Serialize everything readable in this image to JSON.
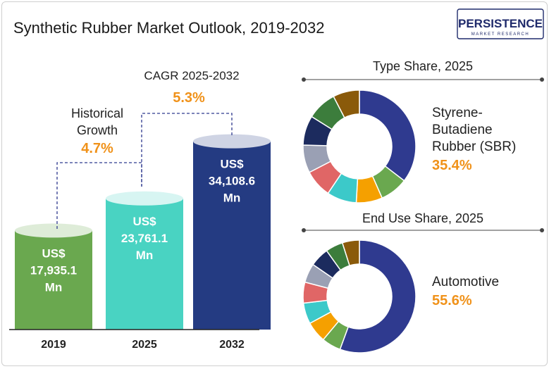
{
  "header": {
    "title": "Synthetic Rubber Market Outlook, 2019-2032",
    "logo_main": "PERSISTENCE",
    "logo_sub": "MARKET RESEARCH"
  },
  "annotations": {
    "historical_label_1": "Historical",
    "historical_label_2": "Growth",
    "historical_value": "4.7%",
    "cagr_label": "CAGR 2025-2032",
    "cagr_value": "5.3%"
  },
  "donuts": {
    "type": {
      "title": "Type Share, 2025",
      "label_lines": [
        "Styrene-",
        "Butadiene",
        "Rubber (SBR)"
      ],
      "value": "35.4%"
    },
    "end_use": {
      "title": "End Use Share, 2025",
      "label_lines": [
        "Automotive"
      ],
      "value": "55.6%"
    }
  },
  "colors": {
    "title": "#1a1a1a",
    "accent_orange": "#f0921a",
    "bar_2019": "#6aa84f",
    "bar_2025": "#49d3c2",
    "bar_2032": "#243b82",
    "navy": "#2f3a8f",
    "green": "#6aa84f",
    "orange": "#f5a000",
    "teal": "#3cc9c9",
    "red": "#e06666",
    "gray": "#9aa0b4",
    "dark_navy": "#1c2b5e",
    "dark_green": "#3c7d3c",
    "brown": "#8a5a0a"
  },
  "chart_data": [
    {
      "type": "bar",
      "categories": [
        "2019",
        "2025",
        "2032"
      ],
      "values": [
        17935.1,
        23761.1,
        34108.6
      ],
      "value_labels": [
        [
          "US$",
          "17,935.1",
          "Mn"
        ],
        [
          "US$",
          "23,761.1",
          "Mn"
        ],
        [
          "US$",
          "34,108.6",
          "Mn"
        ]
      ],
      "ylim": [
        0,
        37000
      ],
      "grid": false,
      "legend": "none"
    },
    {
      "type": "pie",
      "title": "Type Share, 2025",
      "values": [
        35.4,
        8.0,
        7.5,
        8.5,
        8.0,
        8.0,
        8.5,
        8.5,
        7.6
      ],
      "colors": [
        "#2f3a8f",
        "#6aa84f",
        "#f5a000",
        "#3cc9c9",
        "#e06666",
        "#9aa0b4",
        "#1c2b5e",
        "#3c7d3c",
        "#8a5a0a"
      ],
      "labeled_slice": "Styrene-Butadiene Rubber (SBR)",
      "labeled_value": 35.4
    },
    {
      "type": "pie",
      "title": "End Use Share, 2025",
      "values": [
        55.6,
        5.5,
        6.0,
        6.0,
        6.0,
        5.5,
        5.5,
        5.0,
        4.9
      ],
      "colors": [
        "#2f3a8f",
        "#6aa84f",
        "#f5a000",
        "#3cc9c9",
        "#e06666",
        "#9aa0b4",
        "#1c2b5e",
        "#3c7d3c",
        "#8a5a0a"
      ],
      "labeled_slice": "Automotive",
      "labeled_value": 55.6
    }
  ]
}
